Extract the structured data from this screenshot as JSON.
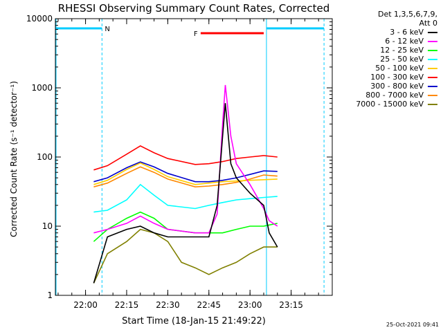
{
  "chart_data": {
    "type": "line",
    "title": "RHESSI Observing Summary Count Rates, Corrected",
    "ylabel": "Corrected Count Rate (s⁻¹ detector⁻¹)",
    "xlabel": "Start Time (18-Jan-15 21:49:22)",
    "yscale": "log",
    "ylim": [
      1,
      10000
    ],
    "xlim": [
      "21:49",
      "23:30"
    ],
    "yticks": [
      "1",
      "10",
      "100",
      "1000",
      "10000"
    ],
    "xticks": [
      "22:00",
      "22:15",
      "22:30",
      "22:45",
      "23:00",
      "23:15"
    ],
    "grid": false,
    "legend_position": "right",
    "legend_header": [
      "Det 1,3,5,6,7,9,",
      "Att 0"
    ],
    "series": [
      {
        "name": "3 - 6 keV",
        "color": "#000000",
        "x": [
          "22:03",
          "22:08",
          "22:15",
          "22:20",
          "22:25",
          "22:30",
          "22:40",
          "22:45",
          "22:48",
          "22:50",
          "22:51",
          "22:53",
          "22:55",
          "23:00",
          "23:05",
          "23:07",
          "23:10"
        ],
        "y": [
          1.5,
          7,
          9,
          10,
          8,
          7,
          7,
          7,
          20,
          200,
          600,
          80,
          50,
          30,
          20,
          8,
          5
        ]
      },
      {
        "name": "6 - 12 keV",
        "color": "#ff00ff",
        "x": [
          "22:03",
          "22:08",
          "22:15",
          "22:20",
          "22:25",
          "22:30",
          "22:40",
          "22:45",
          "22:48",
          "22:50",
          "22:51",
          "22:53",
          "22:55",
          "23:00",
          "23:05",
          "23:07",
          "23:10"
        ],
        "y": [
          8,
          9,
          11,
          14,
          11,
          9,
          8,
          8,
          15,
          300,
          1100,
          200,
          80,
          40,
          18,
          12,
          10
        ]
      },
      {
        "name": "12 - 25 keV",
        "color": "#00ff00",
        "x": [
          "22:03",
          "22:08",
          "22:15",
          "22:20",
          "22:25",
          "22:30",
          "22:40",
          "22:45",
          "22:50",
          "22:55",
          "23:00",
          "23:05",
          "23:10"
        ],
        "y": [
          6,
          9,
          13,
          16,
          13,
          9,
          8,
          8,
          8,
          9,
          10,
          10,
          11
        ]
      },
      {
        "name": "25 - 50 keV",
        "color": "#00ffff",
        "x": [
          "22:03",
          "22:08",
          "22:15",
          "22:20",
          "22:25",
          "22:30",
          "22:40",
          "22:45",
          "22:50",
          "22:55",
          "23:00",
          "23:05",
          "23:10"
        ],
        "y": [
          16,
          17,
          24,
          40,
          28,
          20,
          18,
          20,
          22,
          24,
          25,
          26,
          27
        ]
      },
      {
        "name": "50 - 100 keV",
        "color": "#ffcc00",
        "x": [
          "22:03",
          "22:08",
          "22:15",
          "22:20",
          "22:25",
          "22:30",
          "22:40",
          "22:45",
          "22:50",
          "22:55",
          "23:00",
          "23:05",
          "23:10"
        ],
        "y": [
          40,
          46,
          66,
          82,
          66,
          52,
          40,
          42,
          44,
          45,
          46,
          47,
          48
        ]
      },
      {
        "name": "100 - 300 keV",
        "color": "#ff0000",
        "x": [
          "22:03",
          "22:08",
          "22:15",
          "22:20",
          "22:25",
          "22:30",
          "22:40",
          "22:45",
          "22:50",
          "22:55",
          "23:00",
          "23:05",
          "23:10"
        ],
        "y": [
          65,
          75,
          110,
          145,
          115,
          95,
          78,
          80,
          86,
          95,
          100,
          105,
          100
        ]
      },
      {
        "name": "300 - 800 keV",
        "color": "#0000cc",
        "x": [
          "22:03",
          "22:08",
          "22:15",
          "22:20",
          "22:25",
          "22:30",
          "22:40",
          "22:45",
          "22:50",
          "22:55",
          "23:00",
          "23:05",
          "23:10"
        ],
        "y": [
          44,
          50,
          70,
          85,
          72,
          58,
          44,
          44,
          46,
          50,
          56,
          63,
          62
        ]
      },
      {
        "name": "800 - 7000 keV",
        "color": "#ff8800",
        "x": [
          "22:03",
          "22:08",
          "22:15",
          "22:20",
          "22:25",
          "22:30",
          "22:40",
          "22:45",
          "22:50",
          "22:55",
          "23:00",
          "23:05",
          "23:10"
        ],
        "y": [
          37,
          42,
          58,
          72,
          60,
          48,
          37,
          38,
          40,
          43,
          48,
          55,
          53
        ]
      },
      {
        "name": "7000 - 15000 keV",
        "color": "#808000",
        "x": [
          "22:03",
          "22:08",
          "22:15",
          "22:20",
          "22:25",
          "22:30",
          "22:35",
          "22:40",
          "22:45",
          "22:50",
          "22:55",
          "23:00",
          "23:05",
          "23:10"
        ],
        "y": [
          1.5,
          4,
          6,
          9,
          8,
          6,
          3,
          2.5,
          2,
          2.5,
          3,
          4,
          5,
          5
        ]
      }
    ],
    "annotations": [
      {
        "label": "N",
        "color": "#00ccff",
        "start": "21:49",
        "end": "22:06"
      },
      {
        "label": "F",
        "color": "#ff0000",
        "start": "22:42",
        "end": "23:05"
      },
      {
        "label": "",
        "color": "#00ccff",
        "start": "23:06",
        "end": "23:27"
      }
    ],
    "footer_date": "25-Oct-2021 09:41"
  }
}
